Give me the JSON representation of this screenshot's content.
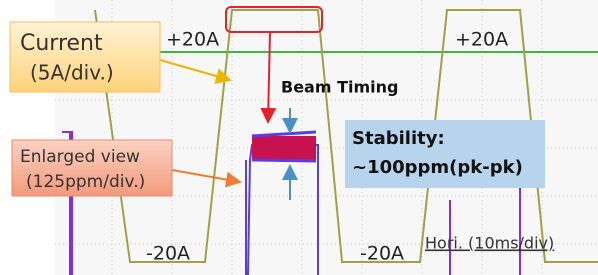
{
  "labels": {
    "current": "Current",
    "current_scale": "(5A/div.)",
    "top_left_level": "+20A",
    "top_right_level": "+20A",
    "beam_timing": "Beam Timing",
    "stability_title": "Stability:",
    "stability_value": "~100ppm(pk-pk)",
    "enlarged": "Enlarged view",
    "enlarged_scale": "(125ppm/div.)",
    "bottom_left_level": "-20A",
    "bottom_right_level": "-20A",
    "horizontal": "Hori. (10ms/div)"
  }
}
